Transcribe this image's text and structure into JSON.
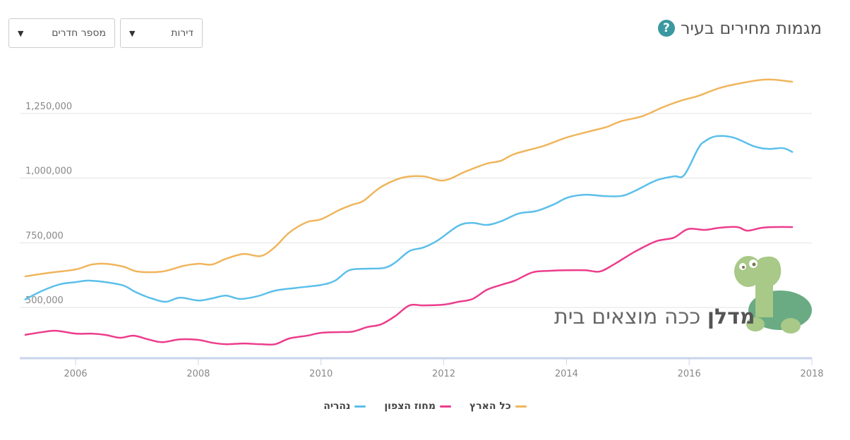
{
  "header": {
    "title": "מגמות מחירים בעיר",
    "help_icon": "?",
    "filters": [
      {
        "value": "דירות"
      },
      {
        "value": "מספר חדרים"
      }
    ]
  },
  "watermark": {
    "brand": "מדלן",
    "tagline": "ככה מוצאים בית"
  },
  "chart_data": {
    "type": "line",
    "title": "מגמות מחירים בעיר",
    "xlabel": "",
    "ylabel": "",
    "xlim": [
      2005.09,
      2018
    ],
    "ylim": [
      304000,
      1416000
    ],
    "x_ticks": [
      2006,
      2008,
      2010,
      2012,
      2014,
      2016,
      2018
    ],
    "y_ticks": [
      {
        "value": 500000,
        "label": "500,000"
      },
      {
        "value": 750000,
        "label": "750,000"
      },
      {
        "value": 1000000,
        "label": "1,000,000"
      },
      {
        "value": 1250000,
        "label": "1,250,000"
      }
    ],
    "grid": "horizontal",
    "legend_position": "bottom",
    "series": [
      {
        "name": "כל הארץ",
        "color": "#f0b55c",
        "points": [
          [
            2005.17,
            620000
          ],
          [
            2005.57,
            634000
          ],
          [
            2006.0,
            647000
          ],
          [
            2006.26,
            666000
          ],
          [
            2006.49,
            669000
          ],
          [
            2006.78,
            658000
          ],
          [
            2007.01,
            639000
          ],
          [
            2007.41,
            639000
          ],
          [
            2007.76,
            661000
          ],
          [
            2008.0,
            669000
          ],
          [
            2008.22,
            666000
          ],
          [
            2008.45,
            688000
          ],
          [
            2008.74,
            707000
          ],
          [
            2009.02,
            699000
          ],
          [
            2009.25,
            734000
          ],
          [
            2009.48,
            789000
          ],
          [
            2009.77,
            830000
          ],
          [
            2010.0,
            841000
          ],
          [
            2010.29,
            876000
          ],
          [
            2010.52,
            898000
          ],
          [
            2010.69,
            912000
          ],
          [
            2010.98,
            966000
          ],
          [
            2011.33,
            1002000
          ],
          [
            2011.67,
            1007000
          ],
          [
            2012.0,
            991000
          ],
          [
            2012.36,
            1026000
          ],
          [
            2012.7,
            1056000
          ],
          [
            2012.93,
            1067000
          ],
          [
            2013.16,
            1094000
          ],
          [
            2013.62,
            1124000
          ],
          [
            2014.0,
            1157000
          ],
          [
            2014.43,
            1184000
          ],
          [
            2014.66,
            1198000
          ],
          [
            2014.89,
            1220000
          ],
          [
            2015.23,
            1239000
          ],
          [
            2015.57,
            1274000
          ],
          [
            2015.86,
            1299000
          ],
          [
            2016.15,
            1318000
          ],
          [
            2016.49,
            1348000
          ],
          [
            2016.84,
            1367000
          ],
          [
            2017.18,
            1380000
          ],
          [
            2017.41,
            1380000
          ],
          [
            2017.69,
            1372000
          ]
        ]
      },
      {
        "name": "מחוז הצפון",
        "color": "#ec3c8c",
        "points": [
          [
            2005.17,
            394000
          ],
          [
            2005.46,
            405000
          ],
          [
            2005.69,
            410000
          ],
          [
            2006.0,
            399000
          ],
          [
            2006.26,
            399000
          ],
          [
            2006.49,
            394000
          ],
          [
            2006.72,
            383000
          ],
          [
            2006.95,
            391000
          ],
          [
            2007.18,
            377000
          ],
          [
            2007.41,
            366000
          ],
          [
            2007.7,
            377000
          ],
          [
            2008.0,
            375000
          ],
          [
            2008.22,
            364000
          ],
          [
            2008.45,
            358000
          ],
          [
            2008.74,
            361000
          ],
          [
            2009.02,
            358000
          ],
          [
            2009.25,
            358000
          ],
          [
            2009.48,
            380000
          ],
          [
            2009.77,
            391000
          ],
          [
            2010.0,
            402000
          ],
          [
            2010.29,
            405000
          ],
          [
            2010.52,
            407000
          ],
          [
            2010.75,
            424000
          ],
          [
            2010.98,
            435000
          ],
          [
            2011.21,
            467000
          ],
          [
            2011.44,
            508000
          ],
          [
            2011.67,
            508000
          ],
          [
            2012.0,
            511000
          ],
          [
            2012.24,
            522000
          ],
          [
            2012.47,
            533000
          ],
          [
            2012.7,
            568000
          ],
          [
            2012.93,
            587000
          ],
          [
            2013.16,
            604000
          ],
          [
            2013.45,
            636000
          ],
          [
            2013.74,
            642000
          ],
          [
            2014.0,
            644000
          ],
          [
            2014.31,
            644000
          ],
          [
            2014.54,
            639000
          ],
          [
            2014.77,
            666000
          ],
          [
            2015.11,
            715000
          ],
          [
            2015.46,
            756000
          ],
          [
            2015.75,
            770000
          ],
          [
            2015.98,
            803000
          ],
          [
            2016.26,
            800000
          ],
          [
            2016.49,
            808000
          ],
          [
            2016.78,
            811000
          ],
          [
            2016.95,
            797000
          ],
          [
            2017.18,
            808000
          ],
          [
            2017.41,
            811000
          ],
          [
            2017.69,
            811000
          ]
        ]
      },
      {
        "name": "נהריה",
        "color": "#5bbfea",
        "points": [
          [
            2005.17,
            530000
          ],
          [
            2005.46,
            565000
          ],
          [
            2005.75,
            590000
          ],
          [
            2006.0,
            598000
          ],
          [
            2006.21,
            604000
          ],
          [
            2006.49,
            598000
          ],
          [
            2006.78,
            585000
          ],
          [
            2006.95,
            563000
          ],
          [
            2007.13,
            544000
          ],
          [
            2007.24,
            535000
          ],
          [
            2007.47,
            522000
          ],
          [
            2007.7,
            538000
          ],
          [
            2008.0,
            527000
          ],
          [
            2008.22,
            535000
          ],
          [
            2008.45,
            546000
          ],
          [
            2008.68,
            533000
          ],
          [
            2008.97,
            544000
          ],
          [
            2009.25,
            565000
          ],
          [
            2009.6,
            576000
          ],
          [
            2010.0,
            587000
          ],
          [
            2010.23,
            604000
          ],
          [
            2010.46,
            644000
          ],
          [
            2010.75,
            650000
          ],
          [
            2011.03,
            653000
          ],
          [
            2011.21,
            674000
          ],
          [
            2011.44,
            718000
          ],
          [
            2011.67,
            732000
          ],
          [
            2011.9,
            759000
          ],
          [
            2012.24,
            816000
          ],
          [
            2012.47,
            827000
          ],
          [
            2012.7,
            819000
          ],
          [
            2012.93,
            833000
          ],
          [
            2013.22,
            863000
          ],
          [
            2013.51,
            873000
          ],
          [
            2013.79,
            898000
          ],
          [
            2014.02,
            925000
          ],
          [
            2014.31,
            936000
          ],
          [
            2014.6,
            931000
          ],
          [
            2014.89,
            931000
          ],
          [
            2015.11,
            950000
          ],
          [
            2015.46,
            991000
          ],
          [
            2015.75,
            1007000
          ],
          [
            2015.92,
            1012000
          ],
          [
            2016.15,
            1116000
          ],
          [
            2016.26,
            1143000
          ],
          [
            2016.44,
            1162000
          ],
          [
            2016.72,
            1157000
          ],
          [
            2017.07,
            1122000
          ],
          [
            2017.3,
            1113000
          ],
          [
            2017.53,
            1116000
          ],
          [
            2017.69,
            1100000
          ]
        ]
      }
    ]
  }
}
